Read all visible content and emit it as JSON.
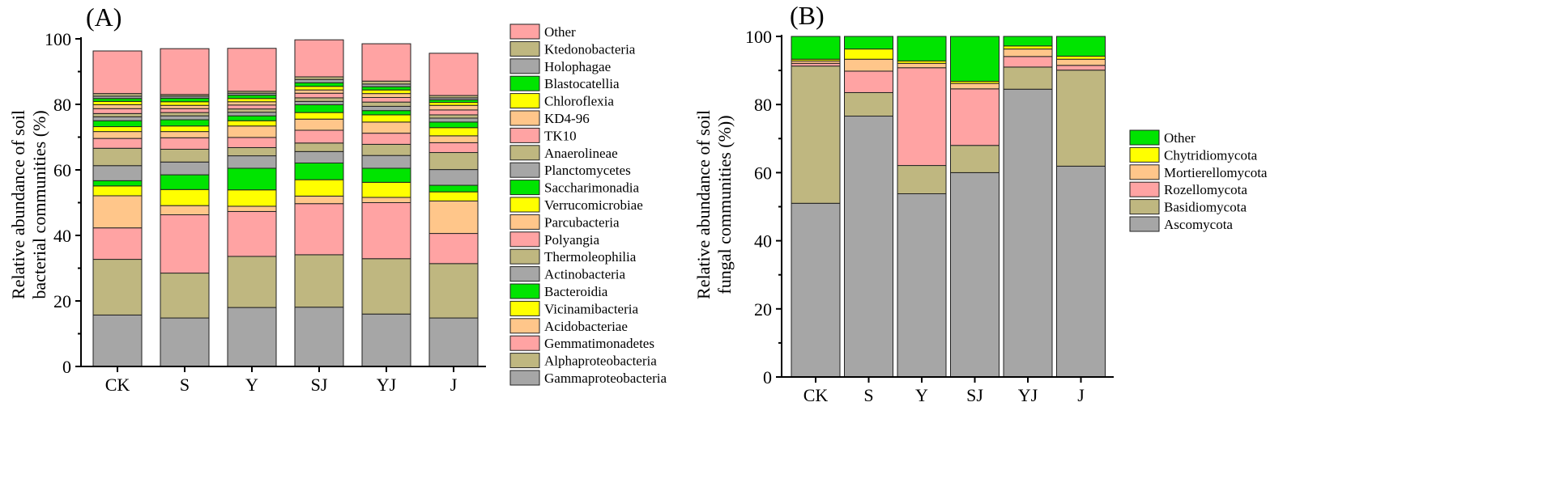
{
  "chart_data": [
    {
      "panel": "(A)",
      "type": "stacked-bar",
      "ylabel_line1": "Relative abundance of soil",
      "ylabel_line2": "bacterial communities (%)",
      "ylim": [
        0,
        100
      ],
      "yticks": [
        0,
        20,
        40,
        60,
        80,
        100
      ],
      "categories": [
        "CK",
        "S",
        "Y",
        "SJ",
        "YJ",
        "J"
      ],
      "series": [
        {
          "name": "Gammaproteobacteria",
          "color": "#a6a6a6",
          "values": [
            15.7,
            14.8,
            18.0,
            18.1,
            16.0,
            14.8
          ]
        },
        {
          "name": "Alphaproteobacteria",
          "color": "#bfb780",
          "values": [
            17.0,
            13.7,
            15.6,
            16.0,
            16.9,
            16.6
          ]
        },
        {
          "name": "Gemmatimonadetes",
          "color": "#ffa3a3",
          "values": [
            9.6,
            17.8,
            13.7,
            15.6,
            17.1,
            9.2
          ]
        },
        {
          "name": "Acidobacteriae",
          "color": "#ffc68a",
          "values": [
            9.8,
            2.8,
            1.6,
            2.3,
            1.6,
            9.9
          ]
        },
        {
          "name": "Vicinamibacteria",
          "color": "#ffff00",
          "values": [
            3.0,
            4.9,
            5.0,
            5.0,
            4.6,
            2.8
          ]
        },
        {
          "name": "Bacteroidia",
          "color": "#00e400",
          "values": [
            1.6,
            4.5,
            6.6,
            5.1,
            4.3,
            2.0
          ]
        },
        {
          "name": "Actinobacteria",
          "color": "#a6a6a6",
          "values": [
            4.6,
            3.9,
            3.8,
            3.5,
            3.9,
            4.8
          ]
        },
        {
          "name": "Thermoleophilia",
          "color": "#bfb780",
          "values": [
            5.3,
            3.9,
            2.5,
            2.6,
            3.4,
            5.2
          ]
        },
        {
          "name": "Polyangia",
          "color": "#ffa3a3",
          "values": [
            3.0,
            3.5,
            3.1,
            3.9,
            3.4,
            3.0
          ]
        },
        {
          "name": "Parcubacteria",
          "color": "#ffc68a",
          "values": [
            2.1,
            1.9,
            3.5,
            3.4,
            3.4,
            2.1
          ]
        },
        {
          "name": "Verrucomicrobiae",
          "color": "#ffff00",
          "values": [
            1.5,
            1.7,
            1.6,
            2.0,
            2.2,
            2.5
          ]
        },
        {
          "name": "Saccharimonadia",
          "color": "#00e400",
          "values": [
            1.8,
            1.9,
            1.5,
            2.4,
            1.3,
            1.7
          ]
        },
        {
          "name": "Planctomycetes",
          "color": "#a6a6a6",
          "values": [
            1.2,
            1.2,
            1.1,
            1.0,
            1.3,
            1.2
          ]
        },
        {
          "name": "Anaerolineae",
          "color": "#bfb780",
          "values": [
            1.0,
            1.0,
            1.0,
            1.1,
            1.3,
            1.0
          ]
        },
        {
          "name": "TK10",
          "color": "#ffa3a3",
          "values": [
            1.5,
            1.2,
            1.2,
            1.4,
            1.4,
            1.5
          ]
        },
        {
          "name": "KD4-96",
          "color": "#ffc68a",
          "values": [
            1.2,
            1.0,
            1.0,
            1.0,
            1.2,
            1.4
          ]
        },
        {
          "name": "Chloroflexia",
          "color": "#ffff00",
          "values": [
            1.0,
            1.1,
            1.0,
            1.1,
            1.1,
            0.9
          ]
        },
        {
          "name": "Blastocatellia",
          "color": "#00e400",
          "values": [
            0.9,
            1.1,
            1.0,
            1.1,
            1.0,
            0.8
          ]
        },
        {
          "name": "Holophagae",
          "color": "#a6a6a6",
          "values": [
            0.7,
            0.6,
            0.6,
            1.0,
            0.8,
            0.6
          ]
        },
        {
          "name": "Ktedonobacteria",
          "color": "#bfb780",
          "values": [
            0.8,
            0.5,
            0.6,
            0.8,
            0.9,
            0.7
          ]
        },
        {
          "name": "Other",
          "color": "#ffa3a3",
          "values": [
            13.0,
            14.0,
            13.1,
            11.3,
            11.4,
            12.9
          ]
        }
      ]
    },
    {
      "panel": "(B)",
      "type": "stacked-bar",
      "ylabel_line1": "Relative abundance of soil",
      "ylabel_line2": "fungal communities (%))",
      "ylim": [
        0,
        100
      ],
      "yticks": [
        0,
        20,
        40,
        60,
        80,
        100
      ],
      "categories": [
        "CK",
        "S",
        "Y",
        "SJ",
        "YJ",
        "J"
      ],
      "series": [
        {
          "name": "Ascomycota",
          "color": "#a6a6a6",
          "values": [
            51.0,
            76.6,
            53.8,
            60.0,
            84.5,
            61.9
          ]
        },
        {
          "name": "Basidiomycota",
          "color": "#bfb780",
          "values": [
            40.3,
            6.9,
            8.3,
            8.0,
            6.5,
            28.2
          ]
        },
        {
          "name": "Rozellomycota",
          "color": "#ffa3a3",
          "values": [
            0.8,
            6.3,
            28.7,
            16.6,
            3.1,
            1.4
          ]
        },
        {
          "name": "Mortierellomycota",
          "color": "#ffc68a",
          "values": [
            0.7,
            3.5,
            1.3,
            1.6,
            2.2,
            1.8
          ]
        },
        {
          "name": "Chytridiomycota",
          "color": "#ffff00",
          "values": [
            0.5,
            3.0,
            0.7,
            0.6,
            0.9,
            0.9
          ]
        },
        {
          "name": "Other",
          "color": "#00e400",
          "values": [
            6.7,
            3.7,
            7.2,
            13.2,
            2.8,
            5.8
          ]
        }
      ]
    }
  ]
}
